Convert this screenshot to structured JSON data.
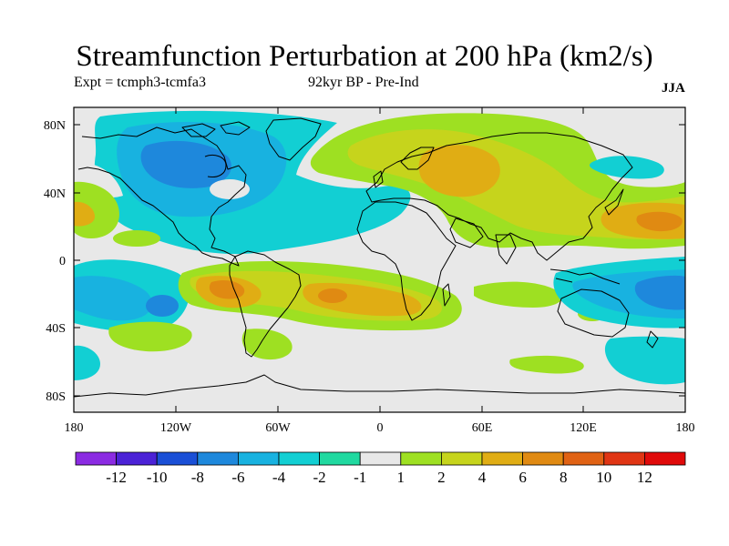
{
  "title": "Streamfunction Perturbation at 200 hPa (km2/s)",
  "experiment": "Expt = tcmph3-tcmfa3",
  "period": "92kyr BP - Pre-Ind",
  "season": "JJA",
  "axes": {
    "lat_ticks": [
      "80N",
      "40N",
      "0",
      "40S",
      "80S"
    ],
    "lon_ticks": [
      "180",
      "120W",
      "60W",
      "0",
      "60E",
      "120E",
      "180"
    ]
  },
  "colorbar": {
    "labels": [
      "-12",
      "-10",
      "-8",
      "-6",
      "-4",
      "-2",
      "-1",
      "1",
      "2",
      "4",
      "6",
      "8",
      "10",
      "12"
    ],
    "colors": [
      "#8b2be2",
      "#4b22d6",
      "#1a4fd6",
      "#1e88dc",
      "#18b2e0",
      "#12cfd3",
      "#20d9a0",
      "#e8e8e8",
      "#9ee022",
      "#c6d41c",
      "#e0ad14",
      "#e08a12",
      "#e06214",
      "#e03514",
      "#e00a0a"
    ]
  },
  "palette": {
    "neg2": "#1e88dc",
    "neg1": "#18b2e0",
    "neg05": "#12cfd3",
    "neutral": "#e8e8e8",
    "pos1": "#9ee022",
    "pos2": "#c6d41c",
    "pos3": "#e0ad14",
    "pos4": "#e08a12"
  }
}
